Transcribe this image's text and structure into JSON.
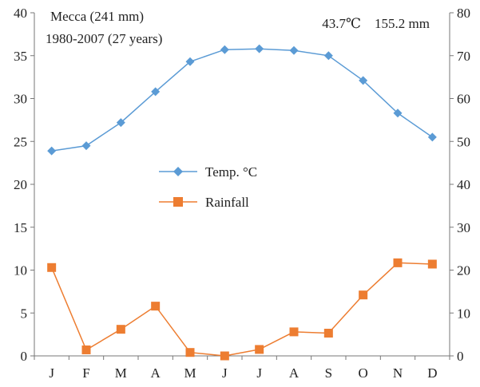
{
  "chart_data": {
    "type": "line",
    "title": "Mecca (241 mm)",
    "subtitle": "1980-2007 (27 years)",
    "annotation": "43.7℃    155.2 mm",
    "categories": [
      "J",
      "F",
      "M",
      "A",
      "M",
      "J",
      "J",
      "A",
      "S",
      "O",
      "N",
      "D"
    ],
    "y_left": {
      "min": 0,
      "max": 40,
      "step": 5
    },
    "y_right": {
      "min": 0,
      "max": 80,
      "step": 10
    },
    "grid": false,
    "legend_position": "center-left",
    "series": [
      {
        "name": "Temp. °C",
        "axis": "left",
        "marker": "diamond",
        "color": "#5b9bd5",
        "values": [
          23.9,
          24.5,
          27.2,
          30.8,
          34.3,
          35.7,
          35.8,
          35.6,
          35.0,
          32.1,
          28.3,
          25.5
        ]
      },
      {
        "name": "Rainfall",
        "axis": "right",
        "marker": "square",
        "color": "#ed7d31",
        "values": [
          20.6,
          1.4,
          6.2,
          11.6,
          0.8,
          0.0,
          1.5,
          5.6,
          5.3,
          14.2,
          21.7,
          21.4
        ]
      }
    ]
  }
}
